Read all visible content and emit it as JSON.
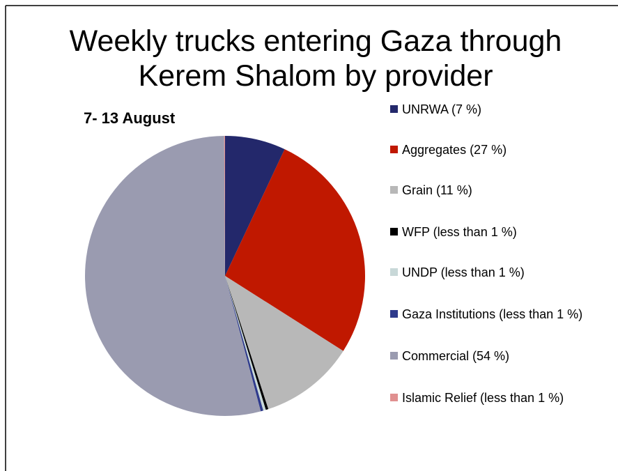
{
  "chart_data": {
    "type": "pie",
    "title": "Weekly trucks entering Gaza through Kerem Shalom by provider",
    "subtitle": "7- 13 August",
    "categories": [
      "UNRWA (7 %)",
      "Aggregates (27 %)",
      "Grain (11 %)",
      "WFP (less than 1 %)",
      "UNDP (less than 1 %)",
      "Gaza Institutions (less than 1 %)",
      "Commercial (54 %)",
      "Islamic Relief (less than 1 %)"
    ],
    "values": [
      7,
      27,
      11,
      0.3,
      0.3,
      0.3,
      54,
      0.1
    ],
    "colors": [
      "#23286b",
      "#c01800",
      "#b8b8b8",
      "#000000",
      "#c8d8d8",
      "#2e3a8c",
      "#9a9bb0",
      "#e09090"
    ],
    "legend": "right"
  }
}
